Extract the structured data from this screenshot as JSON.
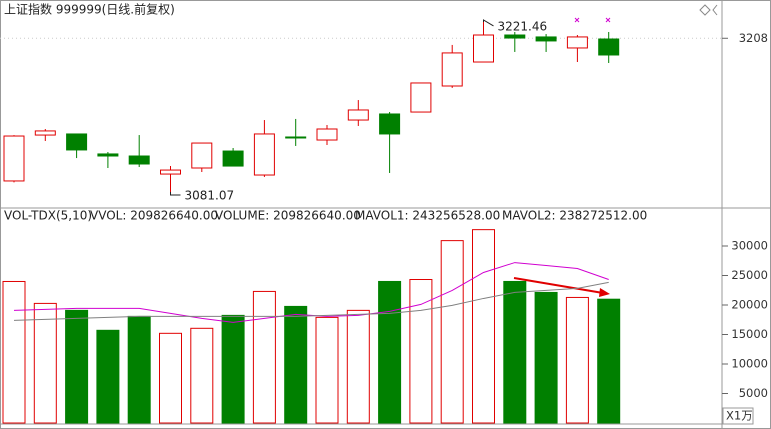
{
  "chart_data": [
    {
      "type": "candlestick",
      "title": "上证指数 999999(日线.前复权)",
      "up_color": "#e00000",
      "down_color": "#008000",
      "open": [
        3090.2,
        3128.1,
        3129.0,
        3112.5,
        3110.8,
        3095.9,
        3100.9,
        3114.9,
        3095.1,
        3126.5,
        3124.0,
        3140.5,
        3145.5,
        3147.1,
        3168.6,
        3188.4,
        3210.7,
        3209.1,
        3200.0,
        3207.4
      ],
      "high": [
        3128.0,
        3133.1,
        3129.0,
        3114.1,
        3128.1,
        3102.5,
        3121.5,
        3117.4,
        3140.5,
        3141.4,
        3136.4,
        3157.0,
        3147.1,
        3171.1,
        3202.5,
        3221.46,
        3213.2,
        3211.5,
        3210.7,
        3213.2
      ],
      "low": [
        3089.0,
        3123.2,
        3109.1,
        3100.9,
        3101.7,
        3081.07,
        3097.6,
        3102.5,
        3093.5,
        3119.1,
        3119.9,
        3135.6,
        3096.8,
        3147.1,
        3167.0,
        3188.4,
        3196.7,
        3196.7,
        3188.4,
        3187.6
      ],
      "close": [
        3127.3,
        3131.5,
        3115.8,
        3110.8,
        3104.2,
        3099.2,
        3121.5,
        3102.5,
        3129.0,
        3125.7,
        3133.1,
        3148.8,
        3129.0,
        3171.1,
        3195.9,
        3210.7,
        3208.2,
        3205.8,
        3209.1,
        3194.2
      ],
      "ylim": [
        3068.7,
        3239.6
      ],
      "yticks": [
        3208
      ],
      "annotations": [
        {
          "value": 3221.46,
          "label": "3221.46"
        },
        {
          "value": 3081.07,
          "label": "3081.07"
        }
      ]
    },
    {
      "type": "volume",
      "legend": [
        "VOL-TDX(5,10)",
        "VVOL: 209826640.00",
        "VOLUME: 209826640.00",
        "MAVOL1: 243256528.00",
        "MAVOL2: 238272512.00"
      ],
      "legend_colors": [
        "#222222",
        "#000080",
        "#d000d0",
        "#d000d0",
        "#808080"
      ],
      "values": [
        23986,
        20270,
        19090,
        15710,
        18070,
        15200,
        16050,
        18240,
        22300,
        19760,
        17900,
        19090,
        23990,
        24320,
        30910,
        32770,
        23990,
        22130,
        21280,
        20982.664
      ],
      "series": [
        {
          "name": "MAVOL1",
          "color": "#d000d0",
          "values": [
            19090,
            19250,
            19420,
            19420,
            19420,
            18580,
            17730,
            17060,
            17730,
            18410,
            18070,
            18240,
            18920,
            20100,
            22470,
            25510,
            27190,
            26690,
            26180,
            24325.6528
          ]
        },
        {
          "name": "MAVOL2",
          "color": "#808080",
          "values": [
            17400,
            17570,
            17730,
            17900,
            18070,
            18070,
            18070,
            18070,
            18070,
            18070,
            18240,
            18410,
            18580,
            19090,
            19930,
            21110,
            22130,
            22470,
            22810,
            23827.2512
          ]
        }
      ],
      "ylim": [
        0,
        36270
      ],
      "yticks": [
        5000,
        10000,
        15000,
        20000,
        25000,
        30000
      ],
      "unit_label": "X1万"
    }
  ]
}
